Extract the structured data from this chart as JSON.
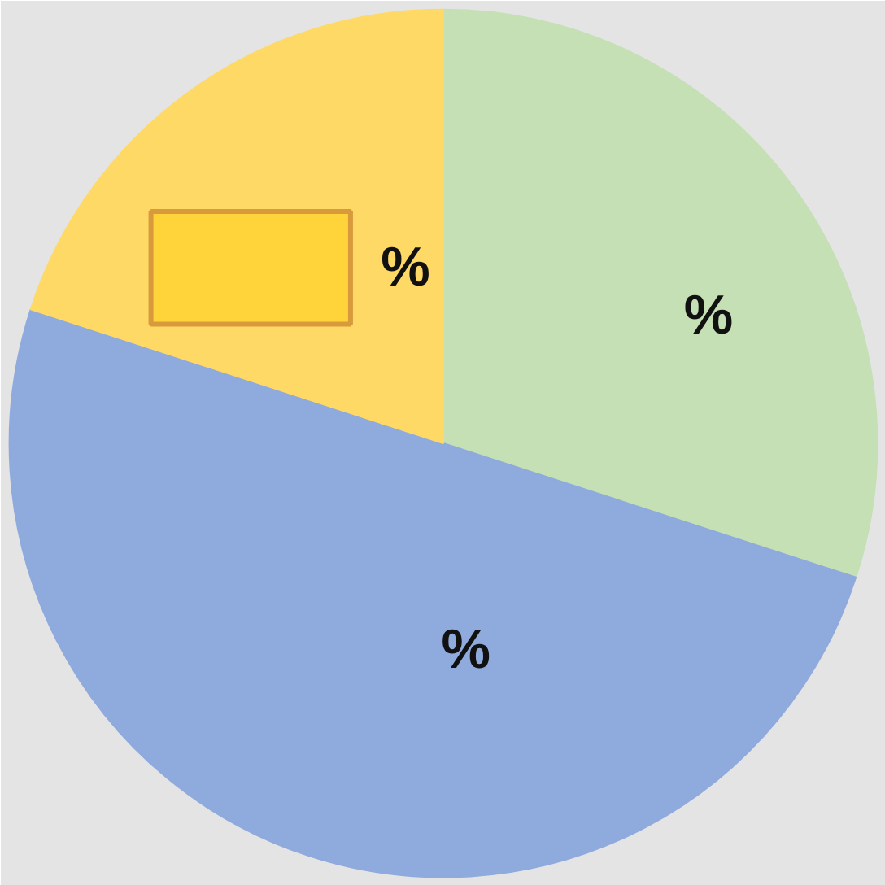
{
  "chart_data": {
    "type": "pie",
    "categories": [
      null,
      null,
      null
    ],
    "values": [
      30,
      50,
      20
    ],
    "colors": [
      "#c5e0b4",
      "#8faadc",
      "#ffd966"
    ],
    "value_labels": [
      "%",
      "%",
      "%"
    ]
  }
}
